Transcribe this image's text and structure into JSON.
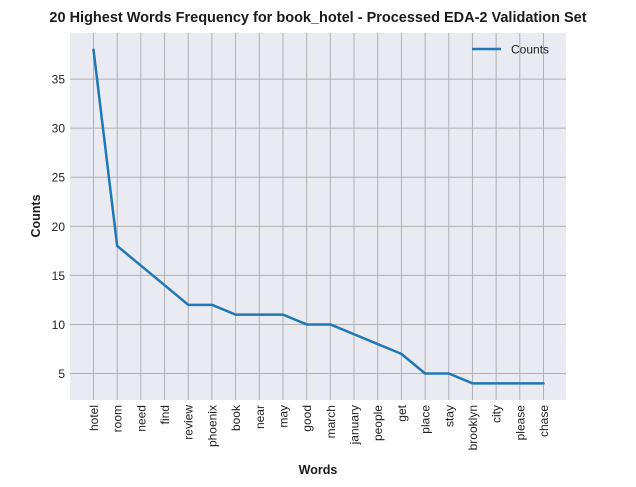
{
  "chart_data": {
    "type": "line",
    "title": "20 Highest Words Frequency for book_hotel - Processed EDA-2 Validation Set",
    "xlabel": "Words",
    "ylabel": "Counts",
    "categories": [
      "hotel",
      "room",
      "need",
      "find",
      "review",
      "phoenix",
      "book",
      "near",
      "may",
      "good",
      "march",
      "january",
      "people",
      "get",
      "place",
      "stay",
      "brooklyn",
      "city",
      "please",
      "chase"
    ],
    "series": [
      {
        "name": "Counts",
        "color": "#1f77b4",
        "values": [
          38,
          18,
          16,
          14,
          12,
          12,
          11,
          11,
          11,
          10,
          10,
          9,
          8,
          7,
          5,
          5,
          4,
          4,
          4,
          4
        ]
      }
    ],
    "yticks": [
      5,
      10,
      15,
      20,
      25,
      30,
      35
    ],
    "ylim": [
      2.3,
      39.7
    ],
    "grid": true,
    "legend": "top-right",
    "colors": {
      "plot_background": "#eaeaf2",
      "grid": "#b0b0b0",
      "line": "#1f77b4"
    }
  }
}
